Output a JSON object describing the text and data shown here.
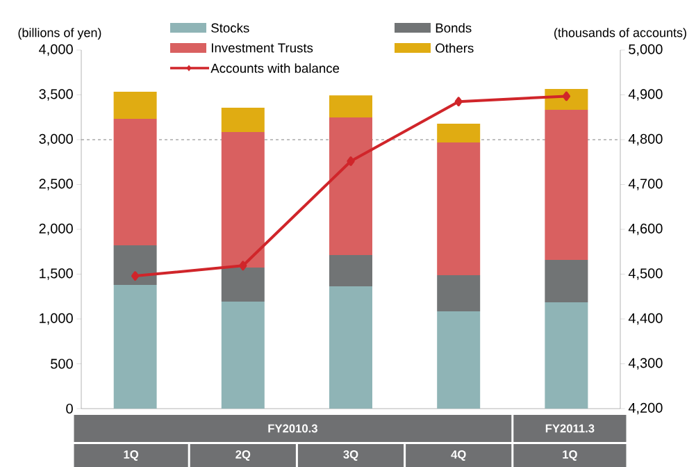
{
  "chart_data": {
    "type": "bar",
    "stacked": true,
    "categories": [
      "1Q",
      "2Q",
      "3Q",
      "4Q",
      "1Q"
    ],
    "series": [
      {
        "name": "Stocks",
        "color": "#8fb4b6",
        "values": [
          1380,
          1194,
          1364,
          1085,
          1186
        ]
      },
      {
        "name": "Bonds",
        "color": "#717475",
        "values": [
          441,
          379,
          349,
          403,
          473
        ]
      },
      {
        "name": "Investment Trusts",
        "color": "#d96060",
        "values": [
          1411,
          1512,
          1535,
          1480,
          1674
        ]
      },
      {
        "name": "Others",
        "color": "#e0ac12",
        "values": [
          302,
          271,
          247,
          210,
          232
        ]
      },
      {
        "name": "Accounts with balance",
        "type": "line",
        "axis": "y2",
        "color": "#d0252a",
        "marker": "diamond",
        "line_style": "solid",
        "values": [
          4496,
          4519,
          4752,
          4885,
          4897
        ]
      }
    ],
    "ylabel": "(billions of yen)",
    "y2label": "(thousands of accounts)",
    "ylim": [
      0,
      4000
    ],
    "yticks": [
      0,
      500,
      {
        "value": 1000,
        "label": "1,000"
      },
      {
        "value": 1500,
        "label": "1,500"
      },
      {
        "value": 2000,
        "label": "2,000"
      },
      {
        "value": 2500,
        "label": "2,500"
      },
      {
        "value": 3000,
        "label": "3,000"
      },
      {
        "value": 3500,
        "label": "3,500"
      },
      {
        "value": 4000,
        "label": "4,000"
      }
    ],
    "y2lim": [
      4200,
      5000
    ],
    "y2ticks": [
      {
        "value": 4200,
        "label": "4,200"
      },
      {
        "value": 4300,
        "label": "4,300"
      },
      {
        "value": 4400,
        "label": "4,400"
      },
      {
        "value": 4500,
        "label": "4,500"
      },
      {
        "value": 4600,
        "label": "4,600"
      },
      {
        "value": 4700,
        "label": "4,700"
      },
      {
        "value": 4800,
        "label": "4,800"
      },
      {
        "value": 4900,
        "label": "4,900"
      },
      {
        "value": 5000,
        "label": "5,000"
      }
    ],
    "ref_lines": [
      {
        "axis": "y",
        "value": 3000,
        "color": "#808080",
        "line_style": "dashed"
      }
    ],
    "annotations": [
      "FY2010.3",
      "FY2011.3"
    ],
    "legend": "top"
  }
}
